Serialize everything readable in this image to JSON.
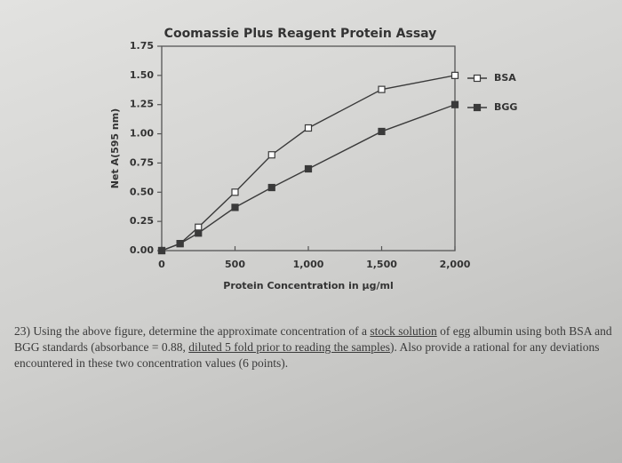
{
  "chart_data": {
    "type": "line",
    "title": "Coomassie Plus Reagent Protein Assay",
    "x_label": "Protein Concentration in µg/ml",
    "y_label": "Net A(595 nm)",
    "x": [
      0,
      125,
      250,
      500,
      750,
      1000,
      1500,
      2000
    ],
    "series": [
      {
        "name": "BSA",
        "color": "#3a3a3a",
        "marker": "open-square",
        "values": [
          0,
          0.06,
          0.2,
          0.5,
          0.82,
          1.05,
          1.38,
          1.5
        ]
      },
      {
        "name": "BGG",
        "color": "#3a3a3a",
        "marker": "filled-square",
        "values": [
          0,
          0.06,
          0.15,
          0.37,
          0.54,
          0.7,
          1.02,
          1.25
        ]
      }
    ],
    "xlim": [
      0,
      2000
    ],
    "xticks": [
      0,
      500,
      {
        "value": 1000,
        "label": "1,000"
      },
      {
        "value": 1500,
        "label": "1,500"
      },
      {
        "value": 2000,
        "label": "2,000"
      }
    ],
    "ylim": [
      0,
      1.75
    ],
    "yticks": [
      {
        "value": 0,
        "label": "0.00"
      },
      {
        "value": 0.25,
        "label": "0.25"
      },
      {
        "value": 0.5,
        "label": "0.50"
      },
      {
        "value": 0.75,
        "label": "0.75"
      },
      {
        "value": 1,
        "label": "1.00"
      },
      {
        "value": 1.25,
        "label": "1.25"
      },
      {
        "value": 1.5,
        "label": "1.50"
      },
      {
        "value": 1.75,
        "label": "1.75"
      }
    ],
    "grid": false,
    "legend": "right"
  },
  "question": [
    {
      "text": "23) Using the above figure, determine the approximate concentration of a "
    },
    {
      "text": "stock solution",
      "underline": true
    },
    {
      "text": " of egg albumin using both BSA and BGG standards (absorbance = 0.88, "
    },
    {
      "text": "diluted 5 fold prior to reading the samples",
      "underline": true
    },
    {
      "text": "). Also provide a rational for any deviations encountered in these two concentration values (6 points)."
    }
  ]
}
